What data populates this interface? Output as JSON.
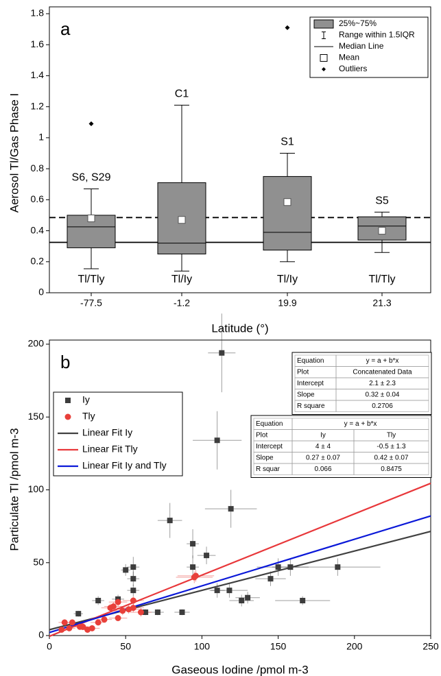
{
  "chart_data": [
    {
      "type": "box",
      "panel": "a",
      "ylabel": "Aerosol Tl/Gas Phase I",
      "xlabel": "Latitude (°)",
      "categories": [
        "-77.5",
        "-1.2",
        "19.9",
        "21.3"
      ],
      "category_labels": [
        "Tl/Tly",
        "Tl/Iy",
        "Tl/Iy",
        "Tl/Tly"
      ],
      "annotations": [
        "S6, S29",
        "C1",
        "S1",
        "S5"
      ],
      "boxes": [
        {
          "low": 0.155,
          "q1": 0.29,
          "median": 0.425,
          "q3": 0.5,
          "high": 0.67,
          "mean": 0.48,
          "outliers": [
            1.09
          ]
        },
        {
          "low": 0.14,
          "q1": 0.25,
          "median": 0.32,
          "q3": 0.71,
          "high": 1.21,
          "mean": 0.47,
          "outliers": []
        },
        {
          "low": 0.2,
          "q1": 0.275,
          "median": 0.39,
          "q3": 0.75,
          "high": 0.9,
          "mean": 0.585,
          "outliers": [
            1.71
          ]
        },
        {
          "low": 0.26,
          "q1": 0.34,
          "median": 0.43,
          "q3": 0.49,
          "high": 0.52,
          "mean": 0.4,
          "outliers": []
        }
      ],
      "color": "#909090",
      "hlines": [
        {
          "value": 0.485,
          "style": "dashed"
        },
        {
          "value": 0.325,
          "style": "solid"
        }
      ],
      "ylim": [
        0,
        1.8
      ],
      "yticks": [
        0,
        0.2,
        0.4,
        0.6,
        0.8,
        1,
        1.2,
        1.4,
        1.6,
        1.8
      ],
      "legend": [
        "25%~75%",
        "Range within 1.5IQR",
        "Median Line",
        "Mean",
        "Outliers"
      ],
      "legend_position": "upper right"
    },
    {
      "type": "scatter",
      "panel": "b",
      "xlabel": "Gaseous Iodine /pmol m-3",
      "ylabel": "Particulate Tl /pmol m-3",
      "xlim": [
        0,
        250
      ],
      "xticks": [
        0,
        50,
        100,
        150,
        200,
        250
      ],
      "ylim": [
        0,
        200
      ],
      "yticks": [
        0,
        50,
        100,
        150,
        200
      ],
      "series": [
        {
          "name": "Iy",
          "color": "#3d3d3d",
          "marker": "square",
          "x": [
            113,
            110,
            119,
            79,
            94,
            94,
            103,
            110,
            118,
            126,
            130,
            145,
            150,
            158,
            166,
            189,
            50,
            55,
            55,
            55,
            63,
            71,
            87,
            32,
            19,
            45
          ],
          "values": [
            194,
            134,
            87,
            79,
            63,
            47,
            55,
            31,
            31,
            24,
            26,
            39,
            47,
            47,
            24,
            47,
            45,
            47,
            39,
            31,
            16,
            16,
            16,
            24,
            15,
            25
          ],
          "xerr": [
            9,
            16,
            17,
            8,
            4,
            4,
            6,
            5,
            12,
            8,
            8,
            10,
            14,
            12,
            18,
            28,
            3,
            4,
            4,
            4,
            4,
            4,
            5,
            4,
            3,
            4
          ],
          "yerr": [
            27,
            20,
            13,
            12,
            10,
            8,
            6,
            5,
            5,
            4,
            4,
            5,
            6,
            6,
            3,
            6,
            4,
            7,
            5,
            4,
            2,
            2,
            2,
            3,
            2,
            3
          ]
        },
        {
          "name": "Tly",
          "color": "#e8403a",
          "marker": "circle",
          "x": [
            10,
            8,
            13,
            15,
            20,
            22,
            25,
            28,
            32,
            36,
            40,
            42,
            45,
            45,
            48,
            52,
            55,
            55,
            60,
            95,
            96
          ],
          "values": [
            9,
            4,
            5,
            9,
            6,
            6,
            4,
            5,
            9,
            11,
            19,
            20,
            12,
            23,
            17,
            18,
            19,
            24,
            16,
            40,
            41
          ],
          "xerr": [
            4,
            3,
            4,
            4,
            5,
            5,
            4,
            5,
            5,
            5,
            6,
            6,
            6,
            6,
            6,
            7,
            7,
            7,
            7,
            12,
            12
          ],
          "yerr": [
            2,
            1,
            1,
            2,
            1,
            1,
            1,
            1,
            2,
            2,
            3,
            3,
            2,
            3,
            3,
            3,
            3,
            3,
            3,
            4,
            4
          ]
        }
      ],
      "fits": [
        {
          "name": "Linear Fit Iy",
          "color": "#404040",
          "intercept": 4,
          "slope": 0.27
        },
        {
          "name": "Linear Fit Tly",
          "color": "#e8373a",
          "intercept": -0.5,
          "slope": 0.42
        },
        {
          "name": "Linear Fit Iy and Tly",
          "color": "#0a18d8",
          "intercept": 2.1,
          "slope": 0.32
        }
      ],
      "legend_position": "upper left",
      "tables": [
        {
          "rows": [
            [
              "Equation",
              "y = a + b*x"
            ],
            [
              "Plot",
              "Concatenated Data"
            ],
            [
              "Intercept",
              "2.1 ± 2.3"
            ],
            [
              "Slope",
              "0.32 ± 0.04"
            ],
            [
              "R square",
              "0.2706"
            ]
          ]
        },
        {
          "rows": [
            [
              "Equation",
              "y = a + b*x"
            ],
            [
              "Plot",
              "Iy",
              "Tly"
            ],
            [
              "Intercept",
              "4 ± 4",
              "-0.5 ± 1.3"
            ],
            [
              "Slope",
              "0.27 ± 0.07",
              "0.42 ± 0.07"
            ],
            [
              "R squar",
              "0.066",
              "0.8475"
            ]
          ]
        }
      ]
    }
  ]
}
